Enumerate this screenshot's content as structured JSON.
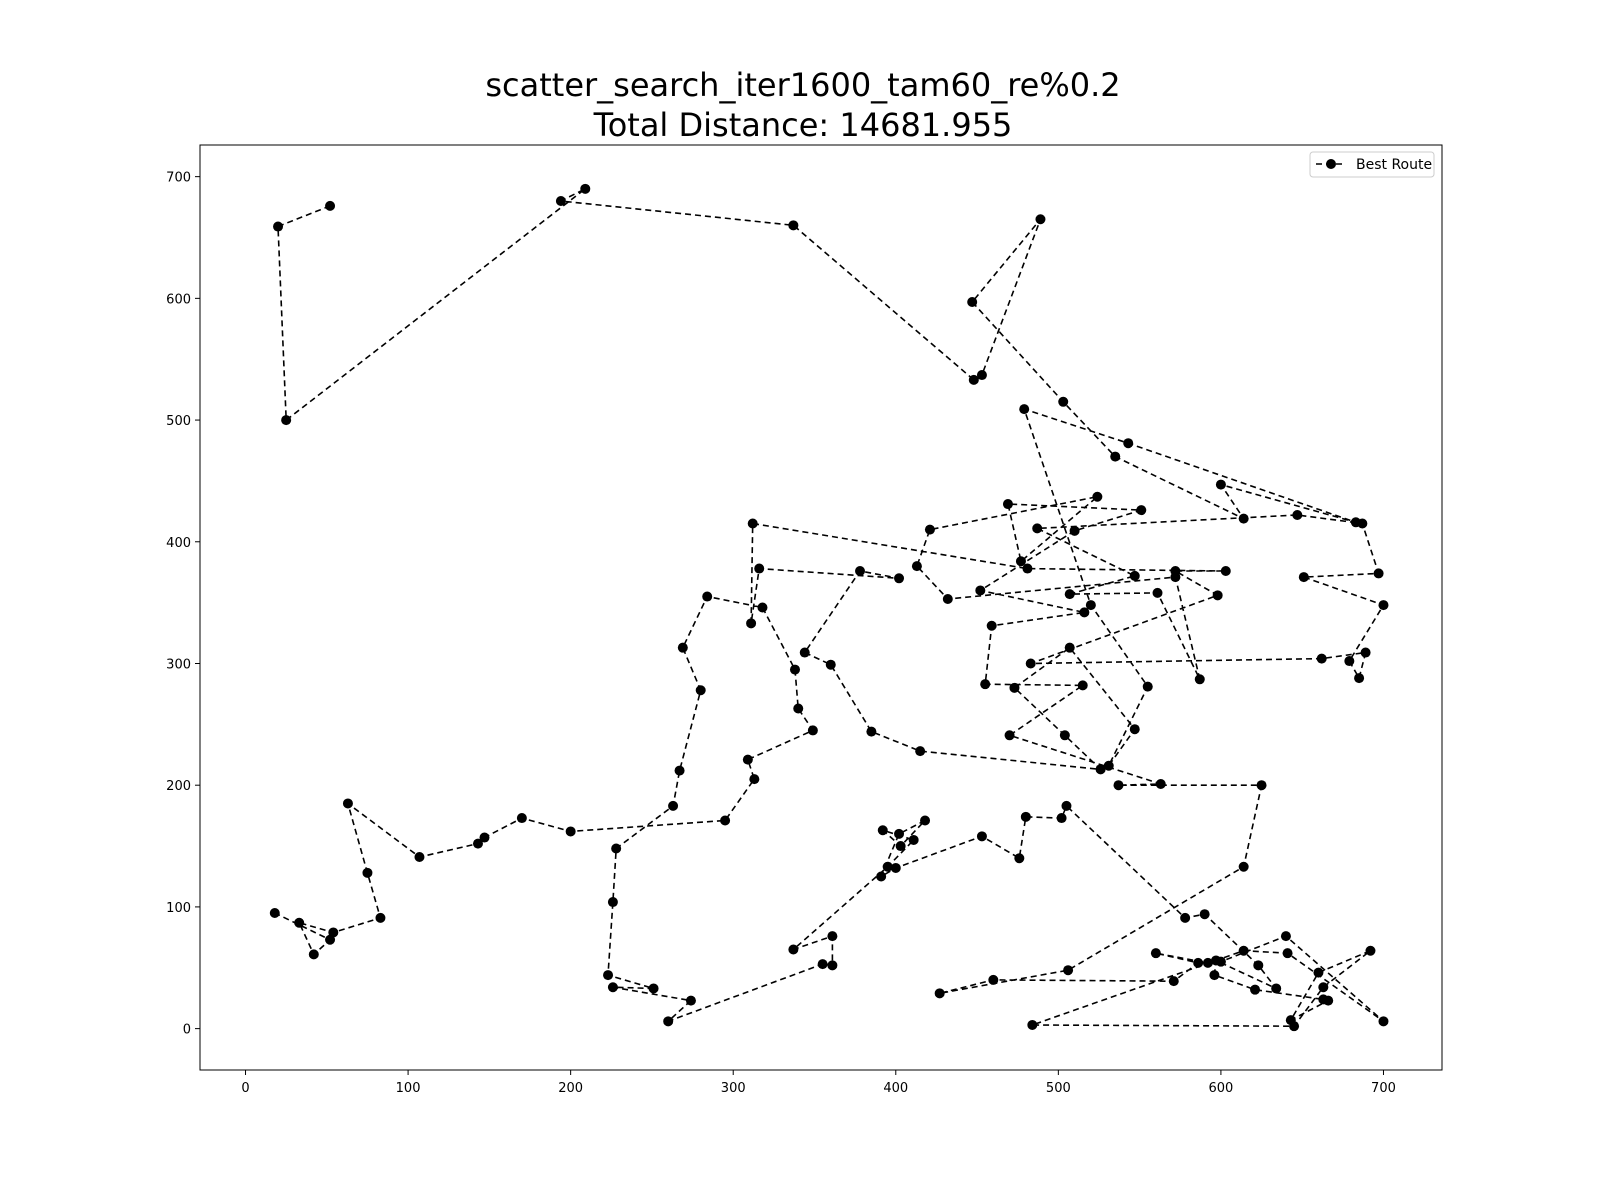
{
  "chart_data": {
    "type": "line",
    "title": "scatter_search_iter1600_tam60_re%0.2",
    "subtitle": "Total Distance: 14681.955",
    "xlabel": "",
    "ylabel": "",
    "xlim": [
      -28,
      736
    ],
    "ylim": [
      -34,
      726
    ],
    "xticks": [
      0,
      100,
      200,
      300,
      400,
      500,
      600,
      700
    ],
    "yticks": [
      0,
      100,
      200,
      300,
      400,
      500,
      600,
      700
    ],
    "grid": false,
    "legend": {
      "position": "top-right",
      "entries": [
        "Best Route"
      ]
    },
    "series": [
      {
        "name": "Best Route",
        "color": "#000000",
        "line_style": "dashed",
        "marker": "circle",
        "x": [
          52,
          20,
          25,
          209,
          194,
          337,
          448,
          453,
          489,
          447,
          503,
          535,
          614,
          600,
          683,
          543,
          479,
          520,
          555,
          531,
          547,
          507,
          473,
          504,
          526,
          415,
          385,
          360,
          344,
          378,
          402,
          316,
          311,
          312,
          481,
          603,
          572,
          598,
          483,
          662,
          689,
          685,
          679,
          700,
          651,
          697,
          687,
          647,
          487,
          547,
          507,
          561,
          587,
          572,
          432,
          413,
          421,
          524,
          477,
          469,
          551,
          510,
          452,
          516,
          459,
          455,
          515,
          470,
          563,
          537,
          625,
          614,
          506,
          427,
          460,
          571,
          586,
          560,
          592,
          600,
          640,
          700,
          641,
          614,
          484,
          645,
          663,
          692,
          660,
          643,
          666,
          663,
          621,
          596,
          597,
          634,
          623,
          590,
          578,
          505,
          502,
          480,
          476,
          453,
          400,
          391,
          402,
          418,
          403,
          392,
          411,
          395,
          337,
          361,
          361,
          355,
          260,
          274,
          226,
          251,
          223,
          226,
          228,
          263,
          267,
          280,
          269,
          284,
          318,
          338,
          340,
          349,
          309,
          313,
          295,
          200,
          170,
          147,
          143,
          107,
          63,
          75,
          83,
          54,
          33,
          42,
          52,
          18
        ],
        "y": [
          676,
          659,
          500,
          690,
          680,
          660,
          533,
          537,
          665,
          597,
          515,
          470,
          419,
          447,
          416,
          481,
          509,
          348,
          281,
          216,
          246,
          313,
          280,
          241,
          213,
          228,
          244,
          299,
          309,
          376,
          370,
          378,
          333,
          415,
          378,
          376,
          376,
          356,
          300,
          304,
          309,
          288,
          302,
          348,
          371,
          374,
          415,
          422,
          411,
          372,
          357,
          358,
          287,
          371,
          353,
          380,
          410,
          437,
          384,
          431,
          426,
          409,
          360,
          342,
          331,
          283,
          282,
          241,
          201,
          200,
          200,
          133,
          48,
          29,
          40,
          39,
          54,
          62,
          54,
          55,
          76,
          6,
          62,
          64,
          3,
          2,
          34,
          64,
          46,
          7,
          23,
          24,
          32,
          44,
          56,
          33,
          52,
          94,
          91,
          183,
          173,
          174,
          140,
          158,
          132,
          125,
          160,
          171,
          150,
          163,
          155,
          133,
          65,
          76,
          52,
          53,
          6,
          23,
          34,
          33,
          44,
          104,
          148,
          183,
          212,
          278,
          313,
          355,
          346,
          295,
          263,
          245,
          221,
          205,
          171,
          162,
          173,
          157,
          152,
          141,
          185,
          128,
          91,
          79,
          87,
          61,
          73,
          95
        ]
      }
    ]
  }
}
